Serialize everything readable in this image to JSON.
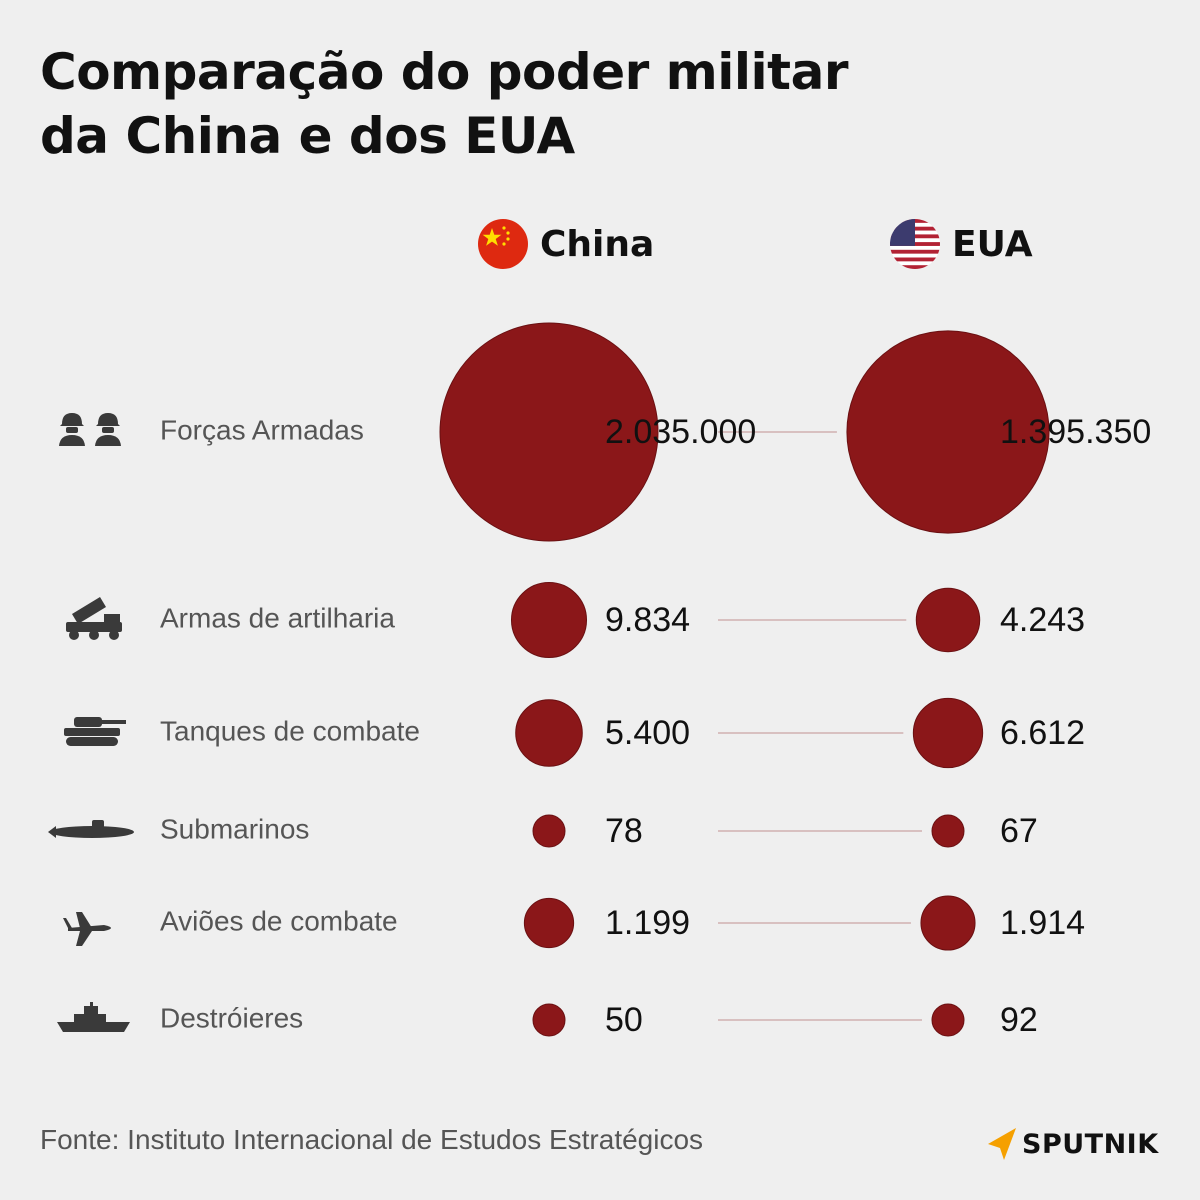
{
  "header": {
    "title_line1": "Comparação do poder militar",
    "title_line2": "da China e dos EUA"
  },
  "countries": [
    {
      "name": "China",
      "flag_icon": "china-flag-icon"
    },
    {
      "name": "EUA",
      "flag_icon": "usa-flag-icon"
    }
  ],
  "colors": {
    "bubble": "#8b1719",
    "background": "#efefef",
    "connector": "#c9a5a5",
    "brand_accent": "#f5a000"
  },
  "chart_data": {
    "type": "bubble",
    "series": [
      {
        "name": "China",
        "values": [
          2035000,
          9834,
          5400,
          78,
          1199,
          50
        ],
        "labels": [
          "2.035.000",
          "9.834",
          "5.400",
          "78",
          "1.199",
          "50"
        ]
      },
      {
        "name": "EUA",
        "values": [
          1395350,
          4243,
          6612,
          67,
          1914,
          92
        ],
        "labels": [
          "1.395.350",
          "4.243",
          "6.612",
          "67",
          "1.914",
          "92"
        ]
      }
    ],
    "categories": [
      {
        "label": "Forças Armadas",
        "icon": "soldiers-icon"
      },
      {
        "label": "Armas de artilharia",
        "icon": "rocket-launcher-icon"
      },
      {
        "label": "Tanques de combate",
        "icon": "tank-icon"
      },
      {
        "label": "Submarinos",
        "icon": "submarine-icon"
      },
      {
        "label": "Aviões de combate",
        "icon": "fighter-jet-icon"
      },
      {
        "label": "Destróieres",
        "icon": "destroyer-icon"
      }
    ]
  },
  "footer": {
    "source": "Fonte: Instituto Internacional de Estudos Estratégicos",
    "brand": "SPUTNIK",
    "brand_icon": "sputnik-logo-icon"
  }
}
